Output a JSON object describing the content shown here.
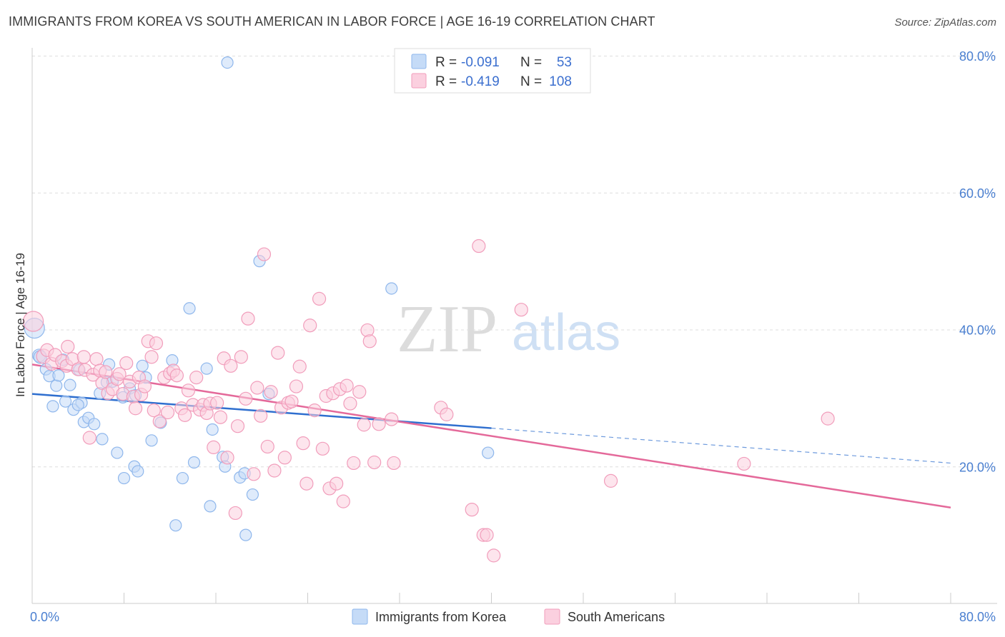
{
  "title": "IMMIGRANTS FROM KOREA VS SOUTH AMERICAN IN LABOR FORCE | AGE 16-19 CORRELATION CHART",
  "source": "Source: ZipAtlas.com",
  "watermark": {
    "zip": "ZIP",
    "atlas": "atlas"
  },
  "legend": {
    "rows": [
      {
        "r_label": "R =",
        "r_value": "-0.091",
        "n_label": "N =",
        "n_value": "53",
        "color": "#8fb7ec",
        "fill": "#c5dbf7"
      },
      {
        "r_label": "R =",
        "r_value": "-0.419",
        "n_label": "N =",
        "n_value": "108",
        "color": "#f19dbb",
        "fill": "#fbd0df"
      }
    ]
  },
  "bottom_legend": [
    {
      "label": "Immigrants from Korea",
      "color": "#8fb7ec",
      "fill": "#c5dbf7"
    },
    {
      "label": "South Americans",
      "color": "#f19dbb",
      "fill": "#fbd0df"
    }
  ],
  "chart_data": {
    "type": "scatter",
    "title": "IMMIGRANTS FROM KOREA VS SOUTH AMERICAN IN LABOR FORCE | AGE 16-19 CORRELATION CHART",
    "xlabel": "",
    "ylabel": "In Labor Force | Age 16-19",
    "xlim": [
      0,
      80
    ],
    "ylim": [
      0,
      80
    ],
    "x_tick_labels": [
      "0.0%",
      "80.0%"
    ],
    "y_tick_labels": [
      "20.0%",
      "40.0%",
      "60.0%",
      "80.0%"
    ],
    "y_ticks": [
      20,
      40,
      60,
      80
    ],
    "grid": "horizontal dashed",
    "legend_position": "top-center",
    "series": [
      {
        "name": "Immigrants from Korea",
        "color": "#5b93df",
        "fill": "#c5dbf7",
        "stroke": "#8fb7ec",
        "trend": {
          "x": [
            0,
            40
          ],
          "y": [
            30.6,
            25.6
          ],
          "color": "#2f6fcf",
          "dashed_extension_to_x": 80,
          "dashed_end_y": 20.5
        },
        "points": [
          [
            0.2,
            40.2,
            14
          ],
          [
            0.6,
            36.2,
            9
          ],
          [
            0.7,
            36.0,
            9
          ],
          [
            1.2,
            34.2,
            8
          ],
          [
            1.5,
            33.2,
            8
          ],
          [
            1.8,
            28.8,
            8
          ],
          [
            2.1,
            31.8,
            8
          ],
          [
            2.3,
            33.3,
            8
          ],
          [
            2.7,
            35.6,
            8
          ],
          [
            2.9,
            29.5,
            8
          ],
          [
            3.3,
            31.9,
            8
          ],
          [
            3.6,
            28.3,
            8
          ],
          [
            4.1,
            34.1,
            8
          ],
          [
            4.3,
            29.3,
            8
          ],
          [
            4.5,
            26.5,
            8
          ],
          [
            4.9,
            27.1,
            8
          ],
          [
            5.4,
            26.2,
            8
          ],
          [
            5.9,
            30.7,
            8
          ],
          [
            6.1,
            24.0,
            8
          ],
          [
            6.5,
            32.3,
            8
          ],
          [
            6.7,
            34.9,
            8
          ],
          [
            7.0,
            32.4,
            8
          ],
          [
            7.4,
            22.0,
            8
          ],
          [
            7.9,
            30.1,
            8
          ],
          [
            8.0,
            18.3,
            8
          ],
          [
            8.5,
            31.4,
            8
          ],
          [
            8.9,
            20.0,
            8
          ],
          [
            9.2,
            19.3,
            8
          ],
          [
            9.6,
            34.7,
            8
          ],
          [
            9.9,
            33.0,
            8
          ],
          [
            10.4,
            23.8,
            8
          ],
          [
            11.2,
            26.4,
            8
          ],
          [
            12.2,
            35.5,
            8
          ],
          [
            12.5,
            11.4,
            8
          ],
          [
            13.1,
            18.3,
            8
          ],
          [
            13.7,
            43.1,
            8
          ],
          [
            14.1,
            20.6,
            8
          ],
          [
            15.2,
            34.3,
            8
          ],
          [
            15.5,
            14.2,
            8
          ],
          [
            15.7,
            25.4,
            8
          ],
          [
            16.6,
            21.4,
            8
          ],
          [
            16.8,
            20.0,
            8
          ],
          [
            17.0,
            79.0,
            8
          ],
          [
            18.1,
            18.4,
            8
          ],
          [
            18.5,
            19.0,
            8
          ],
          [
            18.6,
            10.0,
            8
          ],
          [
            19.2,
            15.9,
            8
          ],
          [
            19.8,
            50.0,
            8
          ],
          [
            20.6,
            30.6,
            8
          ],
          [
            31.3,
            46.0,
            8
          ],
          [
            39.7,
            22.0,
            8
          ],
          [
            4.0,
            29.0,
            8
          ],
          [
            9.0,
            30.4,
            8
          ]
        ]
      },
      {
        "name": "South Americans",
        "color": "#e4729c",
        "fill": "#fbd0df",
        "stroke": "#f19dbb",
        "trend": {
          "x": [
            0,
            80
          ],
          "y": [
            34.9,
            14.0
          ],
          "color": "#e4699a"
        },
        "points": [
          [
            0.1,
            41.2,
            14
          ],
          [
            1.0,
            36.1,
            10
          ],
          [
            1.3,
            37.0,
            9
          ],
          [
            1.7,
            35.0,
            9
          ],
          [
            2.0,
            36.3,
            9
          ],
          [
            2.6,
            35.4,
            9
          ],
          [
            3.0,
            34.7,
            9
          ],
          [
            3.1,
            37.5,
            9
          ],
          [
            3.5,
            35.7,
            9
          ],
          [
            4.0,
            34.2,
            9
          ],
          [
            4.5,
            36.0,
            9
          ],
          [
            4.6,
            34.1,
            9
          ],
          [
            5.0,
            24.2,
            9
          ],
          [
            5.3,
            33.4,
            9
          ],
          [
            5.6,
            35.7,
            9
          ],
          [
            5.9,
            34.0,
            9
          ],
          [
            6.1,
            32.2,
            9
          ],
          [
            6.4,
            33.8,
            9
          ],
          [
            6.6,
            30.7,
            9
          ],
          [
            7.0,
            31.3,
            9
          ],
          [
            7.4,
            32.8,
            9
          ],
          [
            7.6,
            33.5,
            9
          ],
          [
            7.9,
            30.6,
            9
          ],
          [
            8.2,
            35.1,
            9
          ],
          [
            8.5,
            32.4,
            9
          ],
          [
            8.8,
            30.2,
            9
          ],
          [
            9.0,
            28.5,
            9
          ],
          [
            9.3,
            33.0,
            9
          ],
          [
            9.5,
            30.5,
            9
          ],
          [
            9.8,
            31.7,
            9
          ],
          [
            10.1,
            38.3,
            9
          ],
          [
            10.4,
            36.0,
            9
          ],
          [
            10.6,
            28.2,
            9
          ],
          [
            10.8,
            38.0,
            9
          ],
          [
            11.1,
            26.6,
            9
          ],
          [
            11.5,
            33.0,
            9
          ],
          [
            11.8,
            27.9,
            9
          ],
          [
            12.0,
            33.6,
            9
          ],
          [
            12.3,
            34.0,
            9
          ],
          [
            12.6,
            33.3,
            9
          ],
          [
            13.0,
            28.5,
            9
          ],
          [
            13.3,
            27.5,
            9
          ],
          [
            13.6,
            31.1,
            9
          ],
          [
            14.0,
            29.0,
            9
          ],
          [
            14.3,
            33.0,
            9
          ],
          [
            14.6,
            28.3,
            9
          ],
          [
            14.9,
            29.0,
            9
          ],
          [
            15.2,
            27.8,
            9
          ],
          [
            15.5,
            29.2,
            9
          ],
          [
            15.8,
            22.8,
            9
          ],
          [
            16.1,
            29.3,
            9
          ],
          [
            16.4,
            27.2,
            9
          ],
          [
            16.7,
            35.8,
            9
          ],
          [
            17.0,
            21.3,
            9
          ],
          [
            17.3,
            34.7,
            9
          ],
          [
            17.7,
            13.2,
            9
          ],
          [
            17.9,
            25.9,
            9
          ],
          [
            18.2,
            36.0,
            9
          ],
          [
            18.6,
            29.9,
            9
          ],
          [
            18.8,
            41.6,
            9
          ],
          [
            19.3,
            18.9,
            9
          ],
          [
            19.6,
            31.5,
            9
          ],
          [
            19.9,
            27.4,
            9
          ],
          [
            20.2,
            51.0,
            9
          ],
          [
            20.5,
            22.9,
            9
          ],
          [
            20.8,
            30.9,
            9
          ],
          [
            21.1,
            19.4,
            9
          ],
          [
            21.4,
            36.6,
            9
          ],
          [
            21.7,
            28.6,
            9
          ],
          [
            22.0,
            21.3,
            9
          ],
          [
            22.3,
            29.3,
            9
          ],
          [
            22.6,
            29.5,
            9
          ],
          [
            23.0,
            31.7,
            9
          ],
          [
            23.3,
            34.6,
            9
          ],
          [
            23.6,
            23.4,
            9
          ],
          [
            23.9,
            17.5,
            9
          ],
          [
            24.2,
            40.6,
            9
          ],
          [
            24.6,
            28.2,
            9
          ],
          [
            25.0,
            44.5,
            9
          ],
          [
            25.3,
            22.6,
            9
          ],
          [
            25.6,
            30.3,
            9
          ],
          [
            25.9,
            16.8,
            9
          ],
          [
            26.2,
            30.7,
            9
          ],
          [
            26.5,
            17.5,
            9
          ],
          [
            26.8,
            31.3,
            9
          ],
          [
            27.1,
            14.9,
            9
          ],
          [
            27.4,
            31.8,
            9
          ],
          [
            27.7,
            29.2,
            9
          ],
          [
            28.0,
            20.5,
            9
          ],
          [
            28.5,
            30.9,
            9
          ],
          [
            28.9,
            26.1,
            9
          ],
          [
            29.2,
            39.9,
            9
          ],
          [
            29.4,
            38.3,
            9
          ],
          [
            29.8,
            20.6,
            9
          ],
          [
            30.2,
            26.2,
            9
          ],
          [
            31.3,
            26.9,
            9
          ],
          [
            31.5,
            20.5,
            9
          ],
          [
            35.6,
            28.6,
            9
          ],
          [
            36.1,
            27.6,
            9
          ],
          [
            38.3,
            13.7,
            9
          ],
          [
            38.9,
            52.2,
            9
          ],
          [
            39.3,
            10.0,
            9
          ],
          [
            39.6,
            10.0,
            9
          ],
          [
            40.2,
            7.0,
            9
          ],
          [
            42.6,
            42.9,
            9
          ],
          [
            50.4,
            17.9,
            9
          ],
          [
            62.0,
            20.4,
            9
          ],
          [
            69.3,
            27.0,
            9
          ]
        ]
      }
    ]
  }
}
